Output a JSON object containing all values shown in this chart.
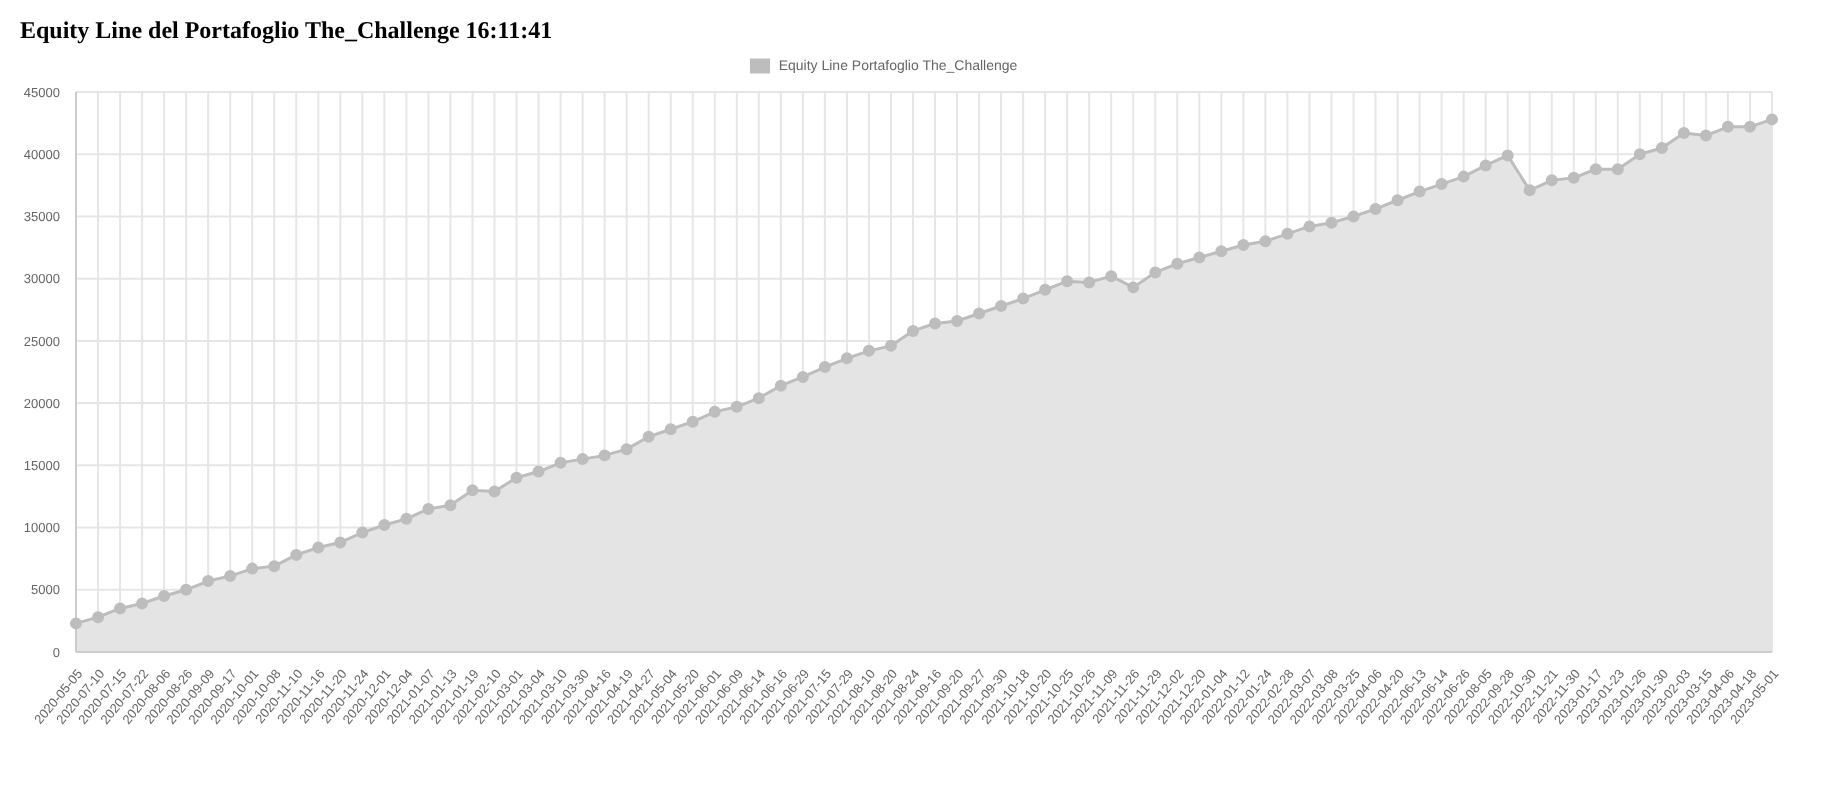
{
  "chart_data": {
    "type": "area",
    "title": "Equity Line del Portafoglio The_Challenge 16:11:41",
    "categories": [
      "2020-05-05",
      "2020-07-10",
      "2020-07-15",
      "2020-07-22",
      "2020-08-06",
      "2020-08-26",
      "2020-09-09",
      "2020-09-17",
      "2020-10-01",
      "2020-10-08",
      "2020-11-10",
      "2020-11-16",
      "2020-11-20",
      "2020-11-24",
      "2020-12-01",
      "2020-12-04",
      "2021-01-07",
      "2021-01-13",
      "2021-01-19",
      "2021-02-10",
      "2021-03-01",
      "2021-03-04",
      "2021-03-10",
      "2021-03-30",
      "2021-04-16",
      "2021-04-19",
      "2021-04-27",
      "2021-05-04",
      "2021-05-20",
      "2021-06-01",
      "2021-06-09",
      "2021-06-14",
      "2021-06-16",
      "2021-06-29",
      "2021-07-15",
      "2021-07-29",
      "2021-08-10",
      "2021-08-20",
      "2021-08-24",
      "2021-09-16",
      "2021-09-20",
      "2021-09-27",
      "2021-09-30",
      "2021-10-18",
      "2021-10-20",
      "2021-10-25",
      "2021-10-26",
      "2021-11-09",
      "2021-11-26",
      "2021-11-29",
      "2021-12-02",
      "2021-12-20",
      "2022-01-04",
      "2022-01-12",
      "2022-01-24",
      "2022-02-28",
      "2022-03-07",
      "2022-03-08",
      "2022-03-25",
      "2022-04-06",
      "2022-04-20",
      "2022-06-13",
      "2022-06-14",
      "2022-06-26",
      "2022-08-05",
      "2022-09-28",
      "2022-10-30",
      "2022-11-21",
      "2022-11-30",
      "2023-01-17",
      "2023-01-23",
      "2023-01-26",
      "2023-01-30",
      "2023-02-03",
      "2023-03-15",
      "2023-04-06",
      "2023-04-18",
      "2023-05-01"
    ],
    "series": [
      {
        "name": "Equity Line Portafoglio The_Challenge",
        "color": "#bdbdbd",
        "values": [
          2300,
          2800,
          3500,
          3900,
          4500,
          5000,
          5700,
          6100,
          6700,
          6900,
          7800,
          8400,
          8800,
          9600,
          10200,
          10700,
          11500,
          11800,
          13000,
          12900,
          14000,
          14500,
          15200,
          15500,
          15800,
          16300,
          17300,
          17900,
          18500,
          19300,
          19700,
          20400,
          21400,
          22100,
          22900,
          23600,
          24200,
          24600,
          25800,
          26400,
          26600,
          27200,
          27800,
          28400,
          29100,
          29800,
          29700,
          30200,
          29300,
          30500,
          31200,
          31700,
          32200,
          32700,
          33000,
          33600,
          34200,
          34500,
          35000,
          35600,
          36300,
          37000,
          37600,
          38200,
          39100,
          39900,
          37100,
          37900,
          38100,
          38800,
          38800,
          40000,
          40500,
          41700,
          41500,
          42200,
          42200,
          42800
        ]
      }
    ],
    "ylim": [
      0,
      45000
    ],
    "yticks": [
      0,
      5000,
      10000,
      15000,
      20000,
      25000,
      30000,
      35000,
      40000,
      45000
    ],
    "grid": true,
    "legend": "top",
    "marker": "circle"
  }
}
